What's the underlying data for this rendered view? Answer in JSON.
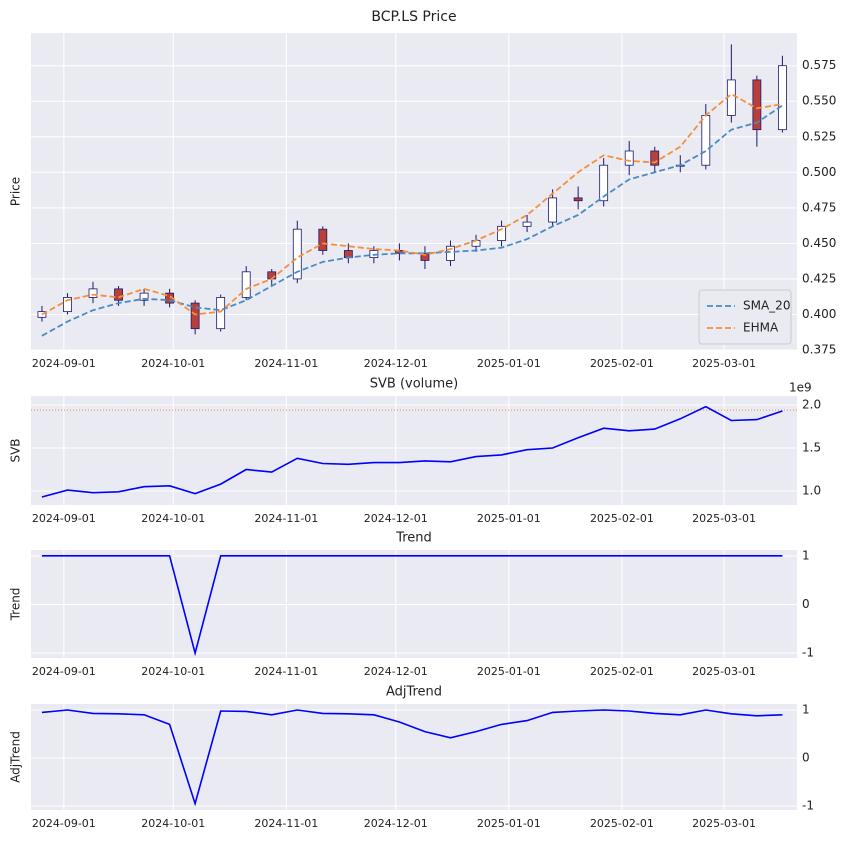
{
  "chart_data": [
    {
      "type": "candlestick",
      "title": "BCP.LS Price",
      "ylabel": "Price",
      "x": [
        "2024-08-26",
        "2024-09-02",
        "2024-09-09",
        "2024-09-16",
        "2024-09-23",
        "2024-09-30",
        "2024-10-07",
        "2024-10-14",
        "2024-10-21",
        "2024-10-28",
        "2024-11-04",
        "2024-11-11",
        "2024-11-18",
        "2024-11-25",
        "2024-12-02",
        "2024-12-09",
        "2024-12-16",
        "2024-12-23",
        "2024-12-30",
        "2025-01-06",
        "2025-01-13",
        "2025-01-20",
        "2025-01-27",
        "2025-02-03",
        "2025-02-10",
        "2025-02-17",
        "2025-02-24",
        "2025-03-03",
        "2025-03-10",
        "2025-03-17"
      ],
      "open": [
        0.398,
        0.402,
        0.412,
        0.418,
        0.41,
        0.415,
        0.408,
        0.39,
        0.412,
        0.43,
        0.425,
        0.46,
        0.445,
        0.44,
        0.445,
        0.443,
        0.438,
        0.448,
        0.452,
        0.462,
        0.465,
        0.482,
        0.48,
        0.505,
        0.515,
        0.505,
        0.505,
        0.54,
        0.565,
        0.53
      ],
      "high": [
        0.406,
        0.415,
        0.423,
        0.42,
        0.418,
        0.418,
        0.41,
        0.414,
        0.434,
        0.432,
        0.466,
        0.462,
        0.45,
        0.448,
        0.45,
        0.448,
        0.452,
        0.456,
        0.466,
        0.47,
        0.488,
        0.49,
        0.51,
        0.522,
        0.518,
        0.512,
        0.548,
        0.59,
        0.568,
        0.582
      ],
      "low": [
        0.395,
        0.4,
        0.408,
        0.406,
        0.406,
        0.405,
        0.386,
        0.388,
        0.41,
        0.42,
        0.422,
        0.442,
        0.436,
        0.436,
        0.438,
        0.432,
        0.434,
        0.444,
        0.448,
        0.458,
        0.462,
        0.474,
        0.476,
        0.498,
        0.5,
        0.5,
        0.502,
        0.535,
        0.518,
        0.528
      ],
      "close": [
        0.402,
        0.412,
        0.418,
        0.41,
        0.415,
        0.408,
        0.39,
        0.412,
        0.43,
        0.425,
        0.46,
        0.445,
        0.44,
        0.445,
        0.443,
        0.438,
        0.448,
        0.452,
        0.462,
        0.465,
        0.482,
        0.48,
        0.505,
        0.515,
        0.505,
        0.505,
        0.54,
        0.565,
        0.53,
        0.575
      ],
      "up_color": "#ffffff",
      "down_color": "#b8403a",
      "edge_color": "#1a1a6e",
      "series": [
        {
          "name": "SMA_20",
          "color": "#4a8bc4",
          "dashed": true,
          "values": [
            0.385,
            0.395,
            0.403,
            0.408,
            0.411,
            0.41,
            0.405,
            0.403,
            0.41,
            0.42,
            0.43,
            0.437,
            0.44,
            0.442,
            0.443,
            0.443,
            0.444,
            0.445,
            0.447,
            0.453,
            0.462,
            0.47,
            0.483,
            0.495,
            0.5,
            0.505,
            0.515,
            0.53,
            0.535,
            0.547
          ]
        },
        {
          "name": "EHMA",
          "color": "#f58f3a",
          "dashed": true,
          "values": [
            0.4,
            0.41,
            0.414,
            0.412,
            0.418,
            0.413,
            0.4,
            0.402,
            0.418,
            0.425,
            0.44,
            0.45,
            0.448,
            0.446,
            0.445,
            0.442,
            0.446,
            0.452,
            0.46,
            0.47,
            0.485,
            0.5,
            0.512,
            0.508,
            0.507,
            0.518,
            0.54,
            0.555,
            0.545,
            0.548
          ]
        }
      ],
      "legend": "lower right",
      "xlim": [
        "2024-08-23",
        "2025-03-21"
      ],
      "xticks": [
        "2024-09-01",
        "2024-10-01",
        "2024-11-01",
        "2024-12-01",
        "2025-01-01",
        "2025-02-01",
        "2025-03-01"
      ],
      "ylim": [
        0.375,
        0.598
      ],
      "yticks": [
        0.375,
        {
          "value": 0.4,
          "label": "0.400"
        },
        0.425,
        {
          "value": 0.45,
          "label": "0.450"
        },
        0.475,
        {
          "value": 0.5,
          "label": "0.500"
        },
        0.525,
        {
          "value": 0.55,
          "label": "0.550"
        },
        0.575
      ],
      "grid": true
    },
    {
      "type": "line",
      "title": "SVB (volume)",
      "ylabel": "SVB",
      "y_offset_label": "1e9",
      "x": [
        "2024-08-26",
        "2024-09-02",
        "2024-09-09",
        "2024-09-16",
        "2024-09-23",
        "2024-09-30",
        "2024-10-07",
        "2024-10-14",
        "2024-10-21",
        "2024-10-28",
        "2024-11-04",
        "2024-11-11",
        "2024-11-18",
        "2024-11-25",
        "2024-12-02",
        "2024-12-09",
        "2024-12-16",
        "2024-12-23",
        "2024-12-30",
        "2025-01-06",
        "2025-01-13",
        "2025-01-20",
        "2025-01-27",
        "2025-02-03",
        "2025-02-10",
        "2025-02-17",
        "2025-02-24",
        "2025-03-03",
        "2025-03-10",
        "2025-03-17"
      ],
      "series": [
        {
          "name": "SVB",
          "color": "#0000ff",
          "values": [
            0.93,
            1.01,
            0.98,
            0.99,
            1.05,
            1.06,
            0.97,
            1.08,
            1.25,
            1.22,
            1.38,
            1.32,
            1.31,
            1.33,
            1.33,
            1.35,
            1.34,
            1.4,
            1.42,
            1.48,
            1.5,
            1.62,
            1.73,
            1.7,
            1.72,
            1.84,
            1.98,
            1.82,
            1.83,
            1.93
          ]
        }
      ],
      "reference_line": {
        "value": 1.94,
        "color": "#f58f3a"
      },
      "xlim": [
        "2024-08-23",
        "2025-03-21"
      ],
      "xticks": [
        "2024-09-01",
        "2024-10-01",
        "2024-11-01",
        "2024-12-01",
        "2025-01-01",
        "2025-02-01",
        "2025-03-01"
      ],
      "ylim": [
        0.837,
        2.105
      ],
      "yticks": [
        {
          "value": 1,
          "label": "1.0"
        },
        1.5,
        {
          "value": 2,
          "label": "2.0"
        }
      ],
      "grid": true
    },
    {
      "type": "line",
      "title": "Trend",
      "ylabel": "Trend",
      "x": [
        "2024-08-26",
        "2024-09-02",
        "2024-09-09",
        "2024-09-16",
        "2024-09-23",
        "2024-09-30",
        "2024-10-07",
        "2024-10-14",
        "2024-10-21",
        "2024-10-28",
        "2024-11-04",
        "2024-11-11",
        "2024-11-18",
        "2024-11-25",
        "2024-12-02",
        "2024-12-09",
        "2024-12-16",
        "2024-12-23",
        "2024-12-30",
        "2025-01-06",
        "2025-01-13",
        "2025-01-20",
        "2025-01-27",
        "2025-02-03",
        "2025-02-10",
        "2025-02-17",
        "2025-02-24",
        "2025-03-03",
        "2025-03-10",
        "2025-03-17"
      ],
      "series": [
        {
          "name": "Trend",
          "color": "#0000ff",
          "values": [
            1,
            1,
            1,
            1,
            1,
            1,
            -1,
            1,
            1,
            1,
            1,
            1,
            1,
            1,
            1,
            1,
            1,
            1,
            1,
            1,
            1,
            1,
            1,
            1,
            1,
            1,
            1,
            1,
            1,
            1
          ]
        }
      ],
      "xlim": [
        "2024-08-23",
        "2025-03-21"
      ],
      "xticks": [
        "2024-09-01",
        "2024-10-01",
        "2024-11-01",
        "2024-12-01",
        "2025-01-01",
        "2025-02-01",
        "2025-03-01"
      ],
      "ylim": [
        -1.1,
        1.12
      ],
      "yticks": [
        1,
        0,
        -1
      ],
      "grid": true
    },
    {
      "type": "line",
      "title": "AdjTrend",
      "ylabel": "AdjTrend",
      "x": [
        "2024-08-26",
        "2024-09-02",
        "2024-09-09",
        "2024-09-16",
        "2024-09-23",
        "2024-09-30",
        "2024-10-07",
        "2024-10-14",
        "2024-10-21",
        "2024-10-28",
        "2024-11-04",
        "2024-11-11",
        "2024-11-18",
        "2024-11-25",
        "2024-12-02",
        "2024-12-09",
        "2024-12-16",
        "2024-12-23",
        "2024-12-30",
        "2025-01-06",
        "2025-01-13",
        "2025-01-20",
        "2025-01-27",
        "2025-02-03",
        "2025-02-10",
        "2025-02-17",
        "2025-02-24",
        "2025-03-03",
        "2025-03-10",
        "2025-03-17"
      ],
      "series": [
        {
          "name": "AdjTrend",
          "color": "#0000ff",
          "values": [
            0.95,
            1.0,
            0.93,
            0.92,
            0.9,
            0.7,
            -0.95,
            0.98,
            0.97,
            0.9,
            1.0,
            0.93,
            0.92,
            0.9,
            0.75,
            0.55,
            0.42,
            0.55,
            0.7,
            0.78,
            0.95,
            0.98,
            1.0,
            0.98,
            0.93,
            0.9,
            1.0,
            0.92,
            0.88,
            0.9
          ]
        }
      ],
      "xlim": [
        "2024-08-23",
        "2025-03-21"
      ],
      "xticks": [
        "2024-09-01",
        "2024-10-01",
        "2024-11-01",
        "2024-12-01",
        "2025-01-01",
        "2025-02-01",
        "2025-03-01"
      ],
      "ylim": [
        -1.083,
        1.125
      ],
      "yticks": [
        1,
        0,
        -1
      ],
      "grid": true
    }
  ]
}
